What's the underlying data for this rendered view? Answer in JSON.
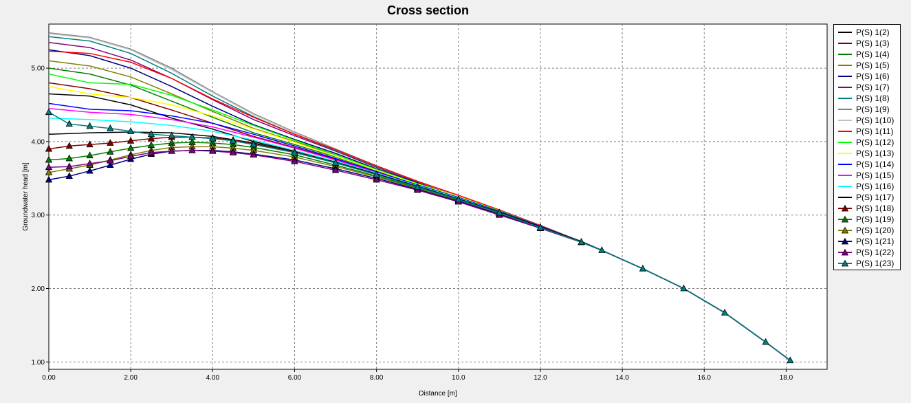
{
  "chart_data": {
    "type": "line",
    "title": "Cross section",
    "xlabel": "Distance [m]",
    "ylabel": "Groundwater head [m]",
    "xlim": [
      0,
      19
    ],
    "ylim": [
      0.9,
      5.6
    ],
    "x_ticks": [
      "0.00",
      "2.00",
      "4.00",
      "6.00",
      "8.00",
      "10.0",
      "12.0",
      "14.0",
      "16.0",
      "18.0"
    ],
    "x_tick_values": [
      0,
      2,
      4,
      6,
      8,
      10,
      12,
      14,
      16,
      18
    ],
    "y_ticks": [
      "1.00",
      "2.00",
      "3.00",
      "4.00",
      "5.00"
    ],
    "y_tick_values": [
      1,
      2,
      3,
      4,
      5
    ],
    "grid": true,
    "legend_position": "right",
    "shared_tail": {
      "x": [
        13.5,
        14.5,
        15.5,
        16.5,
        17.5,
        18.1
      ],
      "y": [
        2.52,
        2.27,
        2.0,
        1.67,
        1.27,
        1.02
      ]
    },
    "series": [
      {
        "name": "P(S) 1(2)",
        "color": "#000000",
        "marker": false,
        "x": [
          0,
          1,
          2,
          3,
          4,
          5,
          6,
          7,
          8,
          9,
          10,
          11,
          12,
          13
        ],
        "y": [
          4.65,
          4.62,
          4.5,
          4.32,
          4.17,
          4.0,
          3.87,
          3.73,
          3.56,
          3.39,
          3.22,
          3.03,
          2.84,
          2.64
        ]
      },
      {
        "name": "P(S) 1(3)",
        "color": "#800000",
        "marker": false,
        "x": [
          0,
          1,
          2,
          3,
          4,
          5,
          6,
          7,
          8,
          9,
          10,
          11,
          12,
          13
        ],
        "y": [
          4.8,
          4.72,
          4.6,
          4.43,
          4.25,
          4.07,
          3.92,
          3.76,
          3.58,
          3.4,
          3.23,
          3.04,
          2.84,
          2.64
        ]
      },
      {
        "name": "P(S) 1(4)",
        "color": "#008000",
        "marker": false,
        "x": [
          0,
          1,
          2,
          3,
          4,
          5,
          6,
          7,
          8,
          9,
          10,
          11,
          12,
          13
        ],
        "y": [
          5.0,
          4.92,
          4.77,
          4.55,
          4.33,
          4.12,
          3.96,
          3.79,
          3.6,
          3.42,
          3.24,
          3.05,
          2.85,
          2.64
        ]
      },
      {
        "name": "P(S) 1(5)",
        "color": "#808000",
        "marker": false,
        "x": [
          0,
          1,
          2,
          3,
          4,
          5,
          6,
          7,
          8,
          9,
          10,
          11,
          12,
          13
        ],
        "y": [
          5.1,
          5.03,
          4.88,
          4.65,
          4.41,
          4.18,
          4.0,
          3.82,
          3.62,
          3.43,
          3.25,
          3.05,
          2.85,
          2.64
        ]
      },
      {
        "name": "P(S) 1(6)",
        "color": "#000080",
        "marker": false,
        "x": [
          0,
          1,
          2,
          3,
          4,
          5,
          6,
          7,
          8,
          9,
          10,
          11,
          12,
          13
        ],
        "y": [
          5.25,
          5.17,
          5.0,
          4.75,
          4.48,
          4.23,
          4.03,
          3.84,
          3.63,
          3.44,
          3.25,
          3.05,
          2.85,
          2.64
        ]
      },
      {
        "name": "P(S) 1(7)",
        "color": "#800080",
        "marker": false,
        "x": [
          0,
          1,
          2,
          3,
          4,
          5,
          6,
          7,
          8,
          9,
          10,
          11,
          12,
          13
        ],
        "y": [
          5.35,
          5.28,
          5.11,
          4.86,
          4.57,
          4.3,
          4.08,
          3.87,
          3.65,
          3.45,
          3.26,
          3.06,
          2.85,
          2.64
        ]
      },
      {
        "name": "P(S) 1(8)",
        "color": "#008080",
        "marker": false,
        "x": [
          0,
          1,
          2,
          3,
          4,
          5,
          6,
          7,
          8,
          9,
          10,
          11,
          12,
          13
        ],
        "y": [
          5.43,
          5.37,
          5.2,
          4.93,
          4.62,
          4.34,
          4.1,
          3.88,
          3.66,
          3.46,
          3.26,
          3.06,
          2.85,
          2.64
        ]
      },
      {
        "name": "P(S) 1(9)",
        "color": "#808080",
        "marker": false,
        "x": [
          0,
          1,
          2,
          3,
          4,
          5,
          6,
          7,
          8,
          9,
          10,
          11,
          12,
          13
        ],
        "y": [
          5.48,
          5.42,
          5.26,
          5.0,
          4.68,
          4.38,
          4.13,
          3.9,
          3.67,
          3.46,
          3.26,
          3.06,
          2.85,
          2.64
        ]
      },
      {
        "name": "P(S) 1(10)",
        "color": "#c0c0c0",
        "marker": false,
        "x": [
          0,
          1,
          2,
          3,
          4,
          5,
          6,
          7,
          8,
          9,
          10,
          11,
          12,
          13
        ],
        "y": [
          5.47,
          5.41,
          5.25,
          4.98,
          4.67,
          4.37,
          4.12,
          3.89,
          3.67,
          3.46,
          3.26,
          3.06,
          2.85,
          2.64
        ]
      },
      {
        "name": "P(S) 1(11)",
        "color": "#ff0000",
        "marker": false,
        "x": [
          0,
          1,
          2,
          3,
          4,
          5,
          6,
          7,
          8,
          9,
          10,
          11,
          12,
          13
        ],
        "y": [
          5.23,
          5.2,
          5.08,
          4.86,
          4.58,
          4.33,
          4.1,
          3.89,
          3.67,
          3.46,
          3.27,
          3.07,
          2.86,
          2.64
        ]
      },
      {
        "name": "P(S) 1(12)",
        "color": "#00ff00",
        "marker": false,
        "x": [
          0,
          1,
          2,
          3,
          4,
          5,
          6,
          7,
          8,
          9,
          10,
          11,
          12,
          13
        ],
        "y": [
          4.92,
          4.8,
          4.78,
          4.63,
          4.43,
          4.22,
          4.02,
          3.82,
          3.62,
          3.43,
          3.25,
          3.06,
          2.85,
          2.64
        ]
      },
      {
        "name": "P(S) 1(13)",
        "color": "#ffff00",
        "marker": false,
        "x": [
          0,
          1,
          2,
          3,
          4,
          5,
          6,
          7,
          8,
          9,
          10,
          11,
          12,
          13
        ],
        "y": [
          4.75,
          4.65,
          4.6,
          4.5,
          4.35,
          4.17,
          3.99,
          3.8,
          3.61,
          3.42,
          3.25,
          3.05,
          2.85,
          2.64
        ]
      },
      {
        "name": "P(S) 1(14)",
        "color": "#0000ff",
        "marker": false,
        "x": [
          0,
          1,
          2,
          3,
          4,
          5,
          6,
          7,
          8,
          9,
          10,
          11,
          12,
          13
        ],
        "y": [
          4.52,
          4.44,
          4.42,
          4.35,
          4.25,
          4.1,
          3.94,
          3.77,
          3.59,
          3.41,
          3.24,
          3.05,
          2.85,
          2.64
        ]
      },
      {
        "name": "P(S) 1(15)",
        "color": "#ff00ff",
        "marker": false,
        "x": [
          0,
          1,
          2,
          3,
          4,
          5,
          6,
          7,
          8,
          9,
          10,
          11,
          12,
          13
        ],
        "y": [
          4.45,
          4.4,
          4.37,
          4.3,
          4.2,
          4.06,
          3.91,
          3.75,
          3.58,
          3.4,
          3.23,
          3.04,
          2.84,
          2.64
        ]
      },
      {
        "name": "P(S) 1(16)",
        "color": "#00ffff",
        "marker": false,
        "x": [
          0,
          1,
          2,
          3,
          4,
          5,
          6,
          7,
          8,
          9,
          10,
          11,
          12,
          13
        ],
        "y": [
          4.32,
          4.3,
          4.27,
          4.22,
          4.14,
          4.02,
          3.88,
          3.73,
          3.57,
          3.4,
          3.23,
          3.04,
          2.84,
          2.64
        ]
      },
      {
        "name": "P(S) 1(17)",
        "color": "#000000",
        "marker": false,
        "x": [
          0,
          1,
          2,
          3,
          4,
          5,
          6,
          7,
          8,
          9,
          10,
          11,
          12,
          13
        ],
        "y": [
          4.1,
          4.12,
          4.13,
          4.12,
          4.07,
          3.98,
          3.86,
          3.72,
          3.56,
          3.39,
          3.22,
          3.04,
          2.84,
          2.64
        ]
      },
      {
        "name": "P(S) 1(18)",
        "color": "#800000",
        "marker": true,
        "x": [
          0,
          0.5,
          1,
          1.5,
          2,
          2.5,
          3,
          3.5,
          4,
          4.5,
          5,
          6,
          7,
          8,
          9,
          10,
          11,
          12,
          13
        ],
        "y": [
          3.9,
          3.94,
          3.96,
          3.98,
          4.01,
          4.04,
          4.06,
          4.06,
          4.05,
          4.02,
          3.97,
          3.86,
          3.71,
          3.55,
          3.38,
          3.21,
          3.03,
          2.83,
          2.63
        ]
      },
      {
        "name": "P(S) 1(19)",
        "color": "#008000",
        "marker": true,
        "x": [
          0,
          0.5,
          1,
          1.5,
          2,
          2.5,
          3,
          3.5,
          4,
          4.5,
          5,
          6,
          7,
          8,
          9,
          10,
          11,
          12,
          13
        ],
        "y": [
          3.75,
          3.77,
          3.81,
          3.86,
          3.91,
          3.95,
          3.98,
          3.99,
          3.98,
          3.96,
          3.92,
          3.82,
          3.68,
          3.53,
          3.37,
          3.2,
          3.02,
          2.83,
          2.63
        ]
      },
      {
        "name": "P(S) 1(20)",
        "color": "#808000",
        "marker": true,
        "x": [
          0,
          0.5,
          1,
          1.5,
          2,
          2.5,
          3,
          3.5,
          4,
          4.5,
          5,
          6,
          7,
          8,
          9,
          10,
          11,
          12,
          13
        ],
        "y": [
          3.58,
          3.63,
          3.68,
          3.75,
          3.82,
          3.88,
          3.92,
          3.93,
          3.93,
          3.91,
          3.88,
          3.79,
          3.66,
          3.52,
          3.36,
          3.2,
          3.02,
          2.83,
          2.63
        ]
      },
      {
        "name": "P(S) 1(21)",
        "color": "#000080",
        "marker": true,
        "x": [
          0,
          0.5,
          1,
          1.5,
          2,
          2.5,
          3,
          3.5,
          4,
          4.5,
          5,
          6,
          7,
          8,
          9,
          10,
          11,
          12,
          13
        ],
        "y": [
          3.48,
          3.53,
          3.6,
          3.68,
          3.76,
          3.83,
          3.87,
          3.88,
          3.88,
          3.86,
          3.83,
          3.75,
          3.63,
          3.5,
          3.35,
          3.19,
          3.01,
          2.82,
          2.63
        ]
      },
      {
        "name": "P(S) 1(22)",
        "color": "#800080",
        "marker": true,
        "x": [
          0,
          0.5,
          1,
          1.5,
          2,
          2.5,
          3,
          3.5,
          4,
          4.5,
          5,
          6,
          7,
          8,
          9,
          10,
          11,
          12,
          13
        ],
        "y": [
          3.65,
          3.66,
          3.7,
          3.74,
          3.8,
          3.85,
          3.87,
          3.88,
          3.87,
          3.85,
          3.82,
          3.73,
          3.61,
          3.48,
          3.34,
          3.18,
          3.0,
          2.82,
          2.63
        ]
      },
      {
        "name": "P(S) 1(23)",
        "color": "#008080",
        "marker": true,
        "x": [
          0,
          0.5,
          1,
          1.5,
          2,
          2.5,
          3,
          3.5,
          4,
          4.5,
          5,
          6,
          7,
          8,
          9,
          10,
          11,
          12,
          13
        ],
        "y": [
          4.4,
          4.24,
          4.21,
          4.18,
          4.14,
          4.1,
          4.08,
          4.06,
          4.04,
          4.01,
          3.96,
          3.85,
          3.71,
          3.55,
          3.38,
          3.21,
          3.03,
          2.83,
          2.63
        ]
      }
    ]
  }
}
